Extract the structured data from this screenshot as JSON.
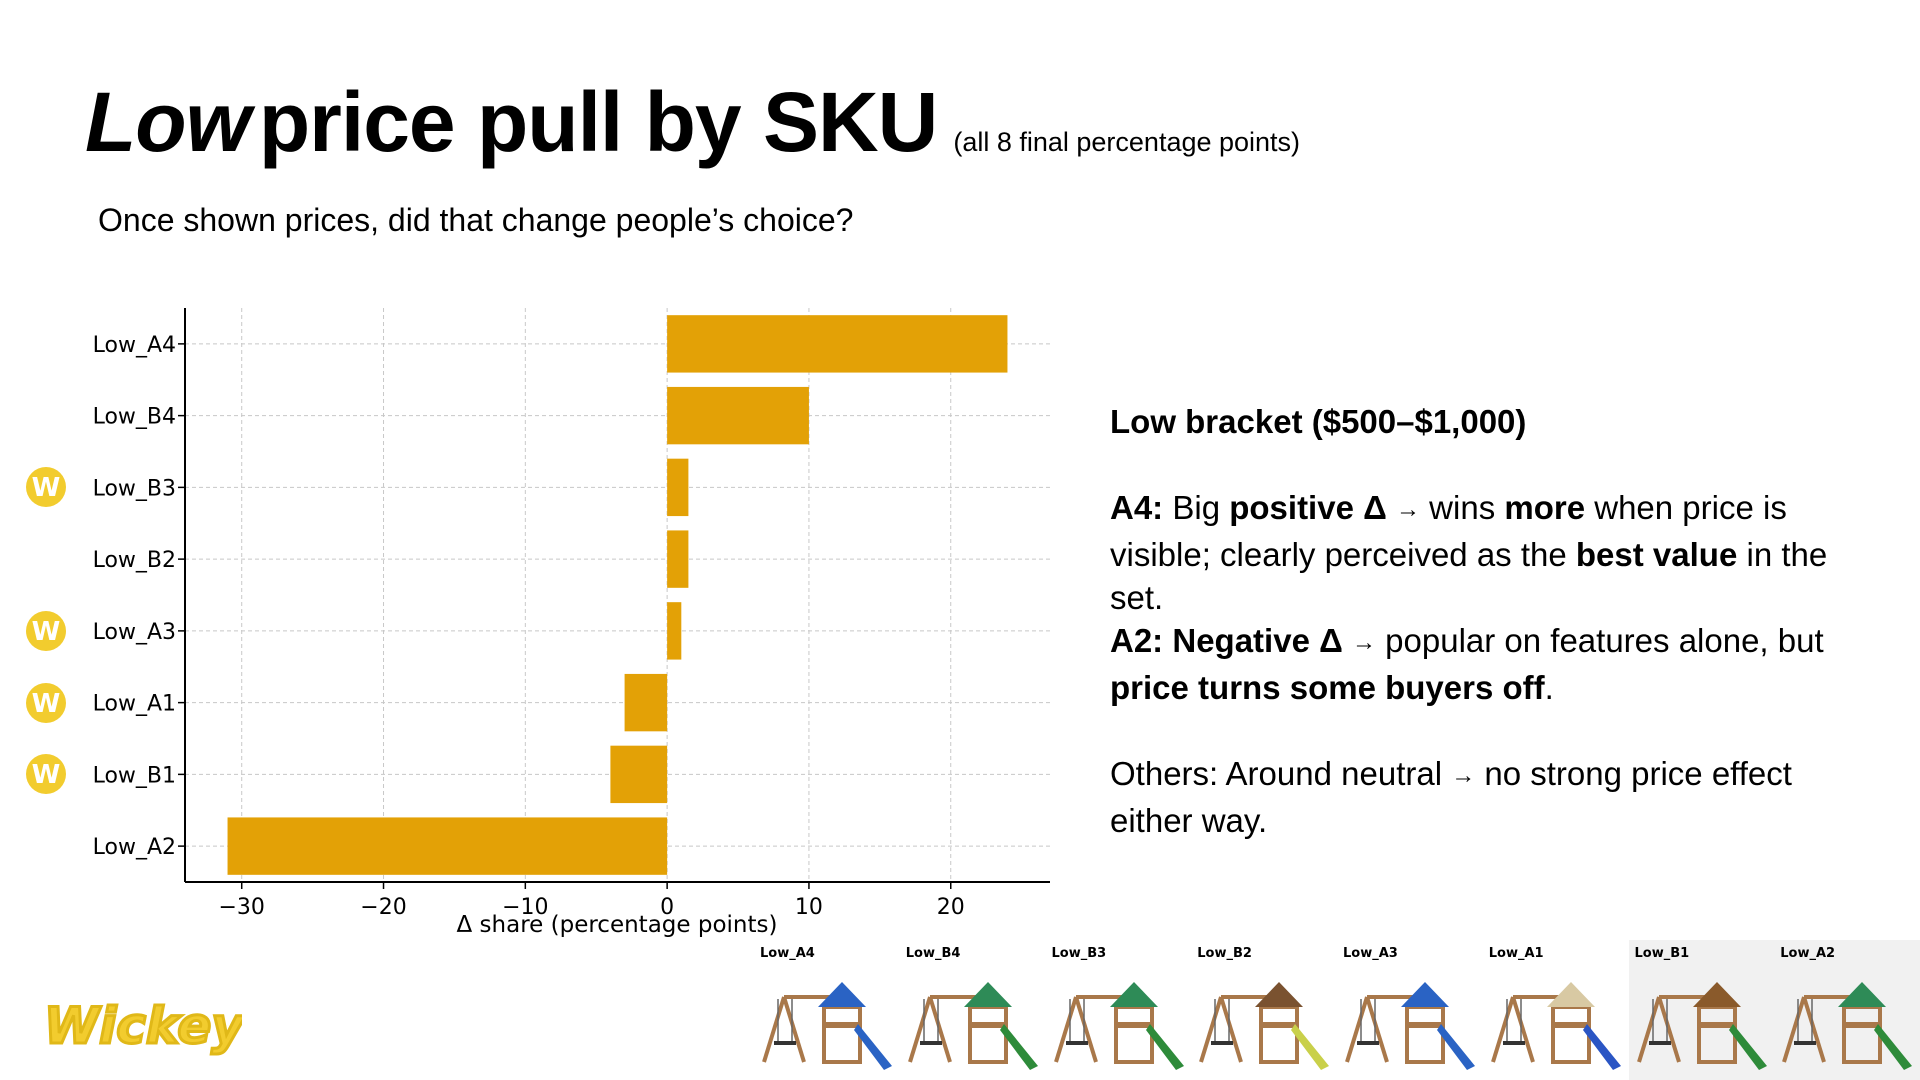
{
  "title": {
    "emphasis": "Low",
    "main": "price pull by SKU",
    "note": "(all 8 final percentage points)"
  },
  "subtitle": "Once shown prices, did that change people’s choice?",
  "chart_data": {
    "type": "bar",
    "orientation": "horizontal",
    "categories": [
      "Low_A4",
      "Low_B4",
      "Low_B3",
      "Low_B2",
      "Low_A3",
      "Low_A1",
      "Low_B1",
      "Low_A2"
    ],
    "values": [
      24,
      10,
      1.5,
      1.5,
      1,
      -3,
      -4,
      -31
    ],
    "xlabel": "Δ share (percentage points)",
    "ylabel": "",
    "xlim": [
      -34,
      27
    ],
    "xticks": [
      -30,
      -20,
      -10,
      0,
      10,
      20
    ],
    "xtick_labels": [
      "−30",
      "−20",
      "−10",
      "0",
      "10",
      "20"
    ],
    "grid": true,
    "bar_color": "#E3A106",
    "badged_categories": [
      "Low_B3",
      "Low_A3",
      "Low_A1",
      "Low_B1"
    ]
  },
  "badge": {
    "letter": "W",
    "color": "#F2CC2E"
  },
  "panel": {
    "heading": "Low bracket ($500–$1,000)",
    "a4_label": "A4:",
    "a4_t1": "Big",
    "a4_b1": "positive Δ",
    "a4_arrow": "→",
    "a4_t2": "wins",
    "a4_b2": "more",
    "a4_t3": "when price is visible; clearly perceived as the",
    "a4_b3": "best value",
    "a4_t4": "in the set.",
    "a2_label": "A2:",
    "a2_b1": "Negative Δ",
    "a2_arrow": "→",
    "a2_t1": "popular on features alone, but",
    "a2_b2": "price turns some buyers off",
    "a2_t2": ".",
    "others_t1": "Others: Around neutral",
    "others_arrow": "→",
    "others_t2": "no strong price effect either way."
  },
  "logo": {
    "text": "Wickey",
    "color": "#F2CC2E"
  },
  "products": [
    {
      "label": "Low_A4",
      "roof": "#2A63C4",
      "slide": "#2A63C4"
    },
    {
      "label": "Low_B4",
      "roof": "#2E8B57",
      "slide": "#2E8B3A"
    },
    {
      "label": "Low_B3",
      "roof": "#2E8B57",
      "slide": "#2E8B3A"
    },
    {
      "label": "Low_B2",
      "roof": "#7A5230",
      "slide": "#C9D04A"
    },
    {
      "label": "Low_A3",
      "roof": "#2A63C4",
      "slide": "#2A63C4"
    },
    {
      "label": "Low_A1",
      "roof": "#D8C9A3",
      "slide": "#2A55C4"
    },
    {
      "label": "Low_B1",
      "roof": "#8A5A2B",
      "slide": "#2E8B3A"
    },
    {
      "label": "Low_A2",
      "roof": "#2E8B57",
      "slide": "#2E8B3A"
    }
  ]
}
